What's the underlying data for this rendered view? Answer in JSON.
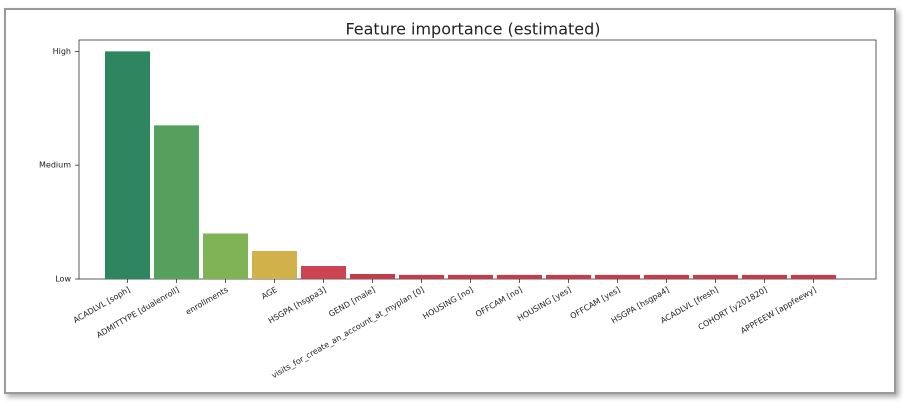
{
  "chart_data": {
    "type": "bar",
    "title": "Feature importance (estimated)",
    "categories": [
      "ACADLVL [soph]",
      "ADMITTYPE [dualenroll]",
      "enrollments",
      "AGE",
      "HSGPA [hsgpa3]",
      "GEND [male]",
      "visits_for_create_an_account_at_myplan [0]",
      "HOUSING [no]",
      "OFFCAM [no]",
      "HOUSING [yes]",
      "OFFCAM [yes]",
      "HSGPA [hsgpa4]",
      "ACADLVL [fresh]",
      "COHORT [y201820]",
      "APPFEEW [appfeewy]"
    ],
    "values": [
      1.0,
      0.675,
      0.2,
      0.123,
      0.057,
      0.022,
      0.018,
      0.018,
      0.018,
      0.018,
      0.018,
      0.018,
      0.018,
      0.018,
      0.018
    ],
    "colors": [
      "#2e8660",
      "#54a05c",
      "#80b355",
      "#d1b24a",
      "#cc4452",
      "#c23d48",
      "#c23d48",
      "#c23d48",
      "#c23d48",
      "#c23d48",
      "#c23d48",
      "#c23d48",
      "#c23d48",
      "#c23d48",
      "#c23d48"
    ],
    "ylim": [
      0,
      1.05
    ],
    "yticks": [
      {
        "value": 0,
        "label": "Low"
      },
      {
        "value": 0.5,
        "label": "Medium"
      },
      {
        "value": 1,
        "label": "High"
      }
    ],
    "grid": false
  }
}
